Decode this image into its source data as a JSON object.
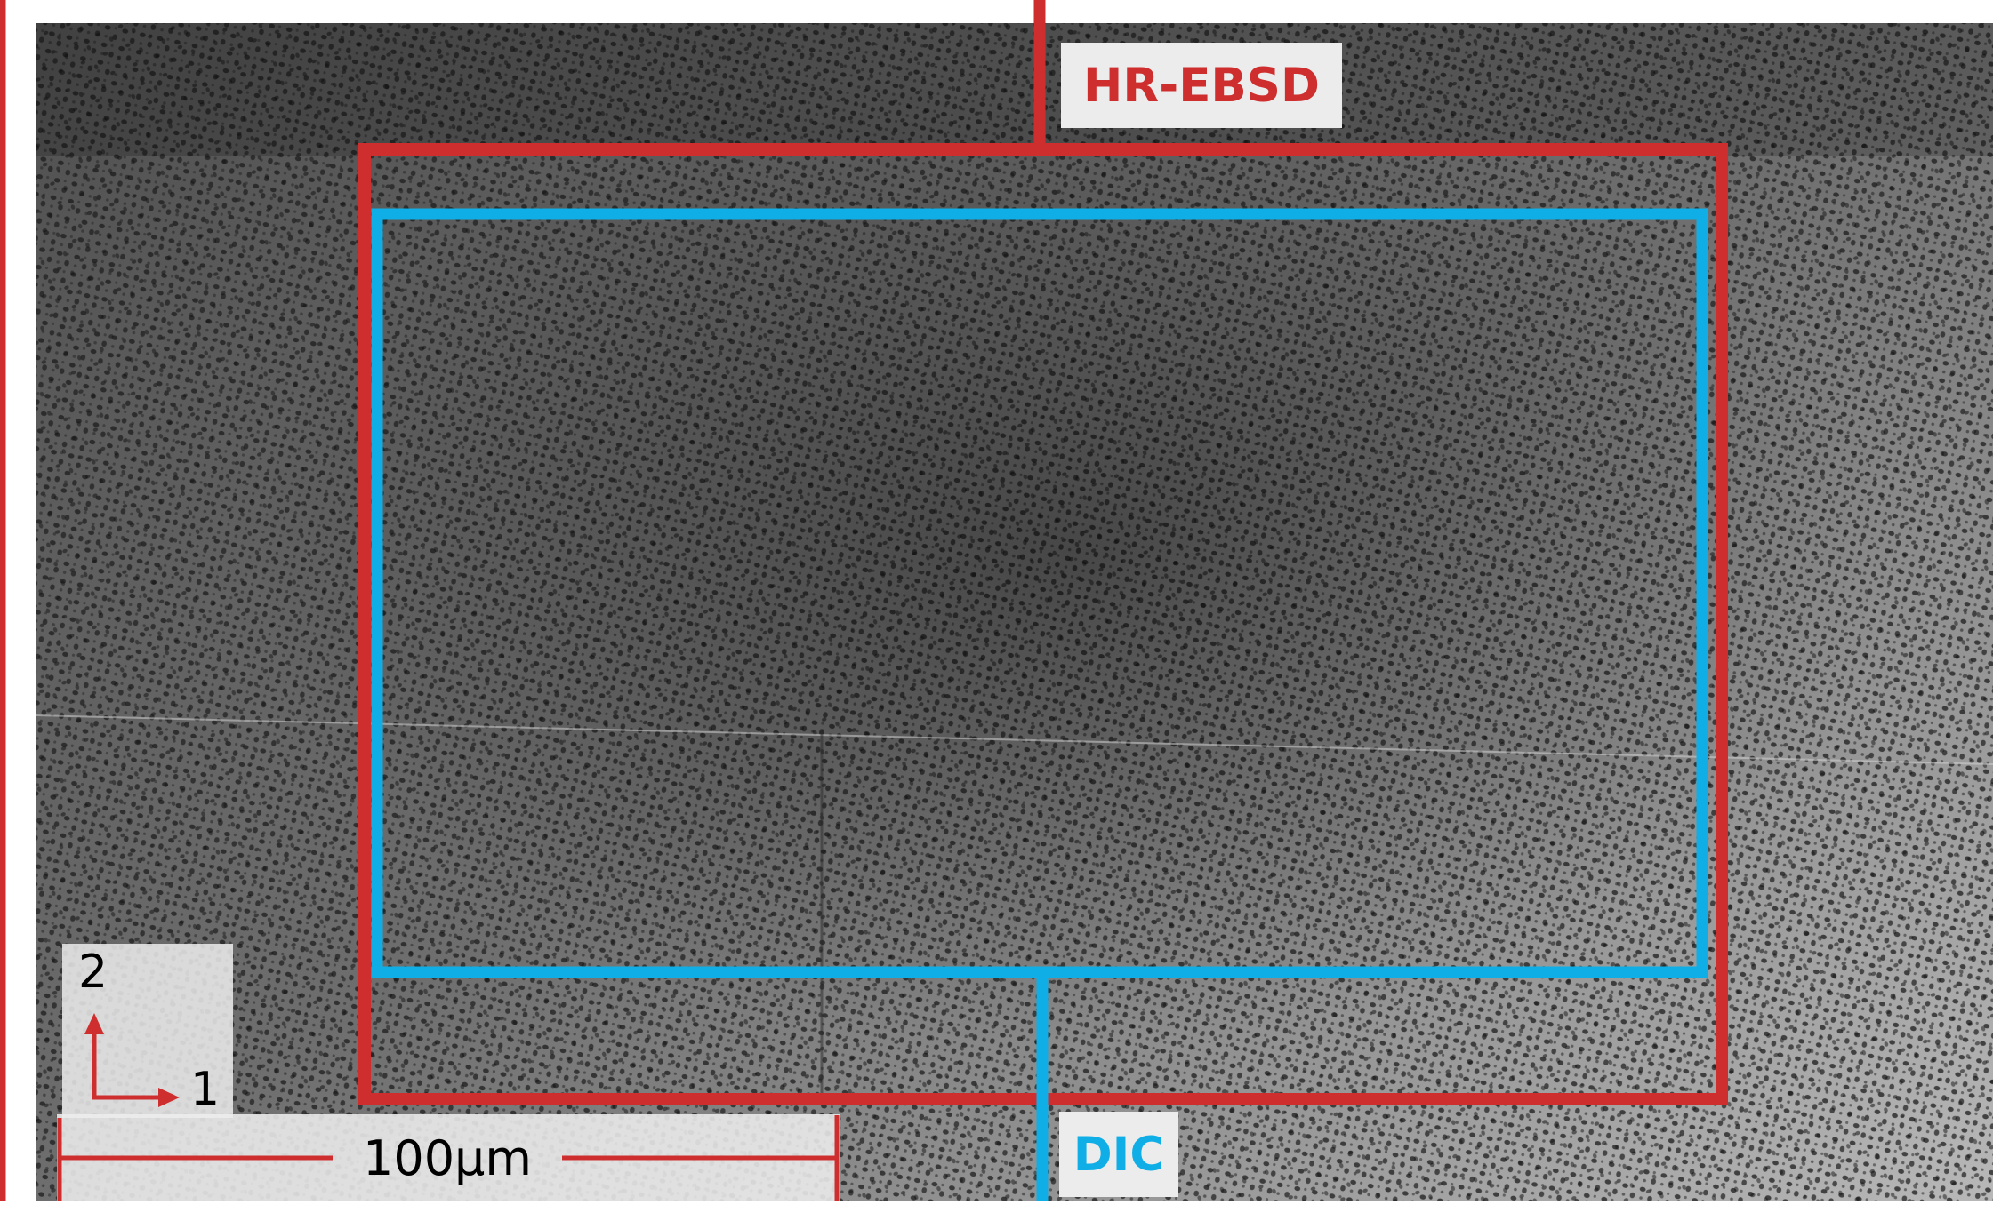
{
  "annotations": {
    "hr_ebsd_label": "HR-EBSD",
    "dic_label": "DIC",
    "axis_2_label": "2",
    "axis_1_label": "1",
    "scale_bar_label": "100µm"
  },
  "colors": {
    "hr_ebsd": "#cf2e2e",
    "dic": "#10aee6",
    "label_bg": "#ececec",
    "micrograph_base": "#6a6a6a"
  }
}
